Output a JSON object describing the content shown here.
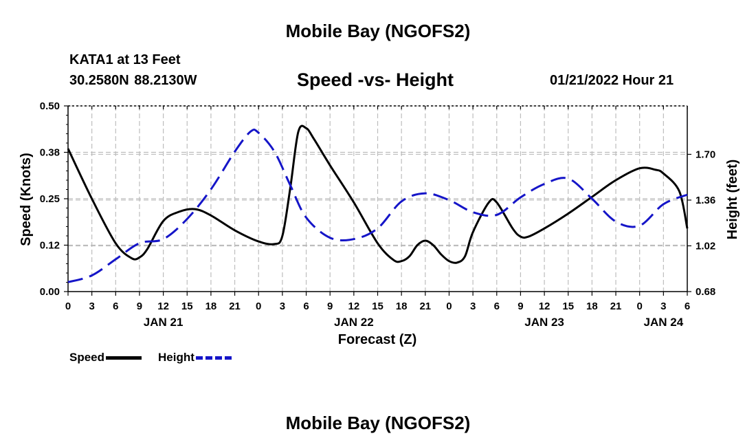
{
  "titles": {
    "main": "Mobile Bay (NGOFS2)",
    "footer": "Mobile Bay (NGOFS2)",
    "station": "KATA1 at 13 Feet",
    "coords": "30.2580N 88.2130W",
    "subtitle": "Speed -vs- Height",
    "runtime": "01/21/2022 Hour 21"
  },
  "colors": {
    "speed": "#000000",
    "height": "#1515c8",
    "grid": "#bdbdbd"
  },
  "chart_data": {
    "type": "line",
    "title": "Speed -vs- Height",
    "xlabel": "Forecast (Z)",
    "ylabel": "Speed (Knots)",
    "y2label": "Height (feet)",
    "x_unit": "hours since 2022-01-21 00Z",
    "xlim": [
      0,
      78
    ],
    "x_ticks": [
      0,
      3,
      6,
      9,
      12,
      15,
      18,
      21,
      24,
      27,
      30,
      33,
      36,
      39,
      42,
      45,
      48,
      51,
      54,
      57,
      60,
      63,
      66,
      69,
      72,
      75,
      78
    ],
    "x_tick_labels": [
      "0",
      "3",
      "6",
      "9",
      "12",
      "15",
      "18",
      "21",
      "0",
      "3",
      "6",
      "9",
      "12",
      "15",
      "18",
      "21",
      "0",
      "3",
      "6",
      "9",
      "12",
      "15",
      "18",
      "21",
      "0",
      "3",
      "6"
    ],
    "date_labels": [
      {
        "x": 12,
        "text": "JAN 21"
      },
      {
        "x": 36,
        "text": "JAN 22"
      },
      {
        "x": 60,
        "text": "JAN 23"
      },
      {
        "x": 75,
        "text": "JAN 24"
      }
    ],
    "ylim": [
      0,
      0.5
    ],
    "y_ticks": [
      0.0,
      0.125,
      0.25,
      0.375,
      0.5
    ],
    "y_tick_labels": [
      "0.00",
      "0.12",
      "0.25",
      "0.38",
      "0.50"
    ],
    "y2lim": [
      0.68,
      2.06
    ],
    "y2_ticks": [
      0.68,
      1.02,
      1.36,
      1.7
    ],
    "y2_tick_labels": [
      "0.68",
      "1.02",
      "1.36",
      "1.70"
    ],
    "series": [
      {
        "name": "Speed",
        "axis": "left",
        "style": "solid",
        "x": [
          0,
          3,
          6,
          8,
          9,
          10,
          12,
          14,
          16,
          18,
          21,
          24,
          26,
          27,
          28,
          29,
          30,
          31,
          33,
          36,
          39,
          41,
          42,
          43,
          44,
          45,
          46,
          47,
          48,
          49,
          50,
          51,
          53,
          54,
          56,
          57,
          58,
          60,
          63,
          66,
          69,
          72,
          74,
          75,
          77,
          78
        ],
        "y": [
          0.385,
          0.25,
          0.13,
          0.09,
          0.092,
          0.115,
          0.19,
          0.215,
          0.222,
          0.205,
          0.165,
          0.135,
          0.128,
          0.15,
          0.28,
          0.43,
          0.44,
          0.41,
          0.34,
          0.24,
          0.13,
          0.085,
          0.082,
          0.095,
          0.125,
          0.137,
          0.125,
          0.1,
          0.082,
          0.078,
          0.095,
          0.16,
          0.24,
          0.24,
          0.17,
          0.148,
          0.148,
          0.17,
          0.21,
          0.255,
          0.3,
          0.332,
          0.328,
          0.318,
          0.27,
          0.17
        ]
      },
      {
        "name": "Height",
        "axis": "right",
        "style": "dashed",
        "x": [
          0,
          3,
          6,
          9,
          12,
          15,
          18,
          21,
          23,
          24,
          26,
          28,
          30,
          33,
          36,
          39,
          42,
          45,
          48,
          51,
          54,
          57,
          60,
          63,
          66,
          69,
          72,
          75,
          78
        ],
        "y": [
          0.75,
          0.8,
          0.92,
          1.04,
          1.07,
          1.22,
          1.44,
          1.72,
          1.87,
          1.86,
          1.72,
          1.47,
          1.23,
          1.08,
          1.07,
          1.15,
          1.35,
          1.41,
          1.36,
          1.27,
          1.25,
          1.38,
          1.48,
          1.52,
          1.37,
          1.2,
          1.17,
          1.33,
          1.4
        ]
      }
    ],
    "legend": [
      {
        "label": "Speed",
        "style": "solid"
      },
      {
        "label": "Height",
        "style": "dashed"
      }
    ]
  }
}
